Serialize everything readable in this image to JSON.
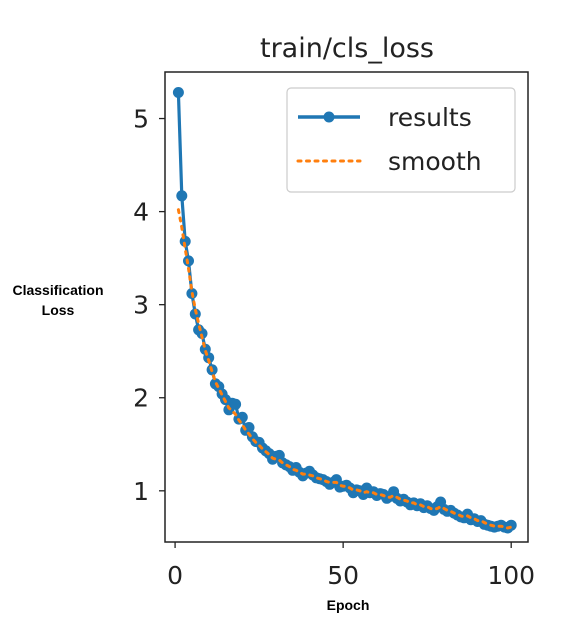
{
  "chart_data": {
    "type": "line",
    "title": "train/cls_loss",
    "xlabel": "Epoch",
    "ylabel": "Classification Loss",
    "xlim": [
      -3,
      105
    ],
    "ylim": [
      0.45,
      5.5
    ],
    "xticks": [
      0,
      50,
      100
    ],
    "yticks": [
      1,
      2,
      3,
      4,
      5
    ],
    "x_tick_labels": [
      "0",
      "50",
      "100"
    ],
    "y_tick_labels": [
      "1",
      "2",
      "3",
      "4",
      "5"
    ],
    "grid": false,
    "legend_position": "top-right",
    "series": [
      {
        "name": "results",
        "style": "line-with-markers",
        "color": "#1f77b4",
        "x": [
          1,
          2,
          3,
          4,
          5,
          6,
          7,
          8,
          9,
          10,
          11,
          12,
          13,
          14,
          15,
          16,
          17,
          18,
          19,
          20,
          21,
          22,
          23,
          24,
          25,
          26,
          27,
          28,
          29,
          30,
          31,
          32,
          33,
          34,
          35,
          36,
          37,
          38,
          39,
          40,
          41,
          42,
          43,
          44,
          45,
          46,
          47,
          48,
          49,
          50,
          51,
          52,
          53,
          54,
          55,
          56,
          57,
          58,
          59,
          60,
          61,
          62,
          63,
          64,
          65,
          66,
          67,
          68,
          69,
          70,
          71,
          72,
          73,
          74,
          75,
          76,
          77,
          78,
          79,
          80,
          81,
          82,
          83,
          84,
          85,
          86,
          87,
          88,
          89,
          90,
          91,
          92,
          93,
          94,
          95,
          96,
          97,
          98,
          99,
          100
        ],
        "y": [
          5.28,
          4.17,
          3.68,
          3.47,
          3.12,
          2.9,
          2.73,
          2.69,
          2.52,
          2.43,
          2.3,
          2.15,
          2.12,
          2.04,
          1.98,
          1.87,
          1.94,
          1.93,
          1.77,
          1.79,
          1.65,
          1.68,
          1.58,
          1.53,
          1.52,
          1.46,
          1.43,
          1.4,
          1.34,
          1.37,
          1.38,
          1.3,
          1.28,
          1.26,
          1.22,
          1.25,
          1.2,
          1.16,
          1.19,
          1.21,
          1.17,
          1.14,
          1.13,
          1.12,
          1.1,
          1.07,
          1.09,
          1.12,
          1.04,
          1.05,
          1.06,
          1.03,
          0.98,
          1.01,
          1.0,
          0.96,
          1.03,
          0.98,
          0.99,
          0.95,
          0.97,
          0.96,
          0.92,
          0.94,
          0.99,
          0.92,
          0.89,
          0.91,
          0.88,
          0.85,
          0.87,
          0.84,
          0.86,
          0.82,
          0.84,
          0.81,
          0.79,
          0.83,
          0.88,
          0.8,
          0.78,
          0.79,
          0.76,
          0.74,
          0.72,
          0.71,
          0.75,
          0.69,
          0.7,
          0.67,
          0.68,
          0.64,
          0.63,
          0.62,
          0.61,
          0.62,
          0.63,
          0.61,
          0.6,
          0.63
        ]
      },
      {
        "name": "smooth",
        "style": "dotted",
        "color": "#ff7f0e",
        "x": [
          1,
          2,
          3,
          4,
          5,
          6,
          7,
          8,
          9,
          10,
          11,
          12,
          13,
          14,
          15,
          16,
          17,
          18,
          19,
          20,
          21,
          22,
          23,
          24,
          25,
          26,
          27,
          28,
          29,
          30,
          31,
          32,
          33,
          34,
          35,
          36,
          37,
          38,
          39,
          40,
          41,
          42,
          43,
          44,
          45,
          46,
          47,
          48,
          49,
          50,
          51,
          52,
          53,
          54,
          55,
          56,
          57,
          58,
          59,
          60,
          61,
          62,
          63,
          64,
          65,
          66,
          67,
          68,
          69,
          70,
          71,
          72,
          73,
          74,
          75,
          76,
          77,
          78,
          79,
          80,
          81,
          82,
          83,
          84,
          85,
          86,
          87,
          88,
          89,
          90,
          91,
          92,
          93,
          94,
          95,
          96,
          97,
          98,
          99,
          100
        ],
        "y": [
          4.02,
          3.83,
          3.6,
          3.39,
          3.14,
          2.95,
          2.8,
          2.65,
          2.51,
          2.4,
          2.28,
          2.17,
          2.1,
          2.03,
          1.96,
          1.89,
          1.86,
          1.82,
          1.76,
          1.71,
          1.65,
          1.61,
          1.56,
          1.52,
          1.49,
          1.45,
          1.42,
          1.39,
          1.35,
          1.34,
          1.33,
          1.3,
          1.28,
          1.26,
          1.23,
          1.22,
          1.2,
          1.18,
          1.18,
          1.17,
          1.16,
          1.14,
          1.13,
          1.12,
          1.1,
          1.09,
          1.09,
          1.09,
          1.06,
          1.05,
          1.05,
          1.03,
          1.01,
          1.01,
          1.0,
          0.98,
          0.99,
          0.98,
          0.98,
          0.96,
          0.96,
          0.95,
          0.93,
          0.93,
          0.95,
          0.93,
          0.91,
          0.9,
          0.89,
          0.87,
          0.87,
          0.85,
          0.85,
          0.83,
          0.83,
          0.81,
          0.8,
          0.81,
          0.83,
          0.81,
          0.79,
          0.78,
          0.76,
          0.75,
          0.73,
          0.72,
          0.73,
          0.71,
          0.7,
          0.68,
          0.68,
          0.66,
          0.64,
          0.63,
          0.62,
          0.62,
          0.62,
          0.61,
          0.6,
          0.61
        ]
      }
    ]
  }
}
